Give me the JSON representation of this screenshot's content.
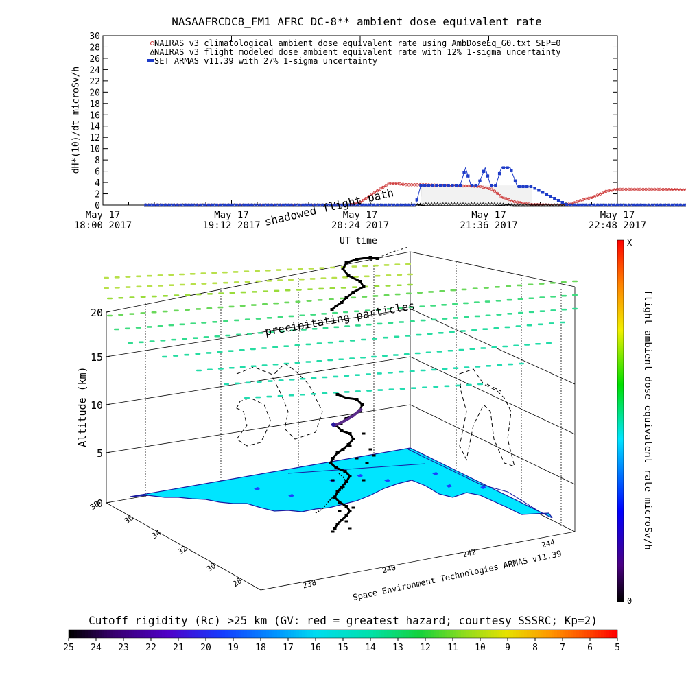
{
  "chart_data": [
    {
      "type": "line",
      "title": "NASAAFRCDC8_FM1 AFRC DC-8** ambient dose equivalent rate",
      "ylabel": "dH*(10)/dt microSv/h",
      "xlabel": "UT time",
      "ylim": [
        0,
        30
      ],
      "yticks": [
        "0",
        "2",
        "4",
        "6",
        "8",
        "10",
        "12",
        "14",
        "16",
        "18",
        "20",
        "22",
        "24",
        "26",
        "28",
        "30"
      ],
      "xticks": [
        {
          "line1": "May 17",
          "line2": "18:00 2017"
        },
        {
          "line1": "May 17",
          "line2": "19:12 2017"
        },
        {
          "line1": "May 17",
          "line2": "20:24 2017"
        },
        {
          "line1": "May 17",
          "line2": "21:36 2017"
        },
        {
          "line1": "May 17",
          "line2": "22:48 2017"
        }
      ],
      "xlim_minutes_after_1800": [
        0,
        288
      ],
      "legend_position": "top-left",
      "series": [
        {
          "name": "NAIRAS v3 climatological ambient dose equivalent rate using AmbDoseEq_G0.txt SEP=0",
          "color": "#cc3333",
          "marker": "circle",
          "x_minutes": [
            24,
            40,
            60,
            80,
            100,
            110,
            115,
            120,
            125,
            132,
            138,
            144,
            150,
            158,
            160,
            165,
            170,
            180,
            190,
            200,
            206,
            211,
            218,
            223,
            230,
            240,
            252,
            258,
            263,
            268,
            275,
            282,
            288,
            294,
            306,
            312,
            324,
            333,
            338,
            342,
            348,
            354
          ],
          "y": [
            0,
            0,
            0,
            0,
            0,
            0,
            0,
            0,
            0,
            0,
            0,
            0.5,
            1.8,
            3.4,
            3.8,
            3.8,
            3.6,
            3.6,
            3.5,
            3.4,
            3.4,
            3.3,
            2.8,
            1.5,
            0.6,
            0.1,
            0,
            0,
            0.3,
            0.9,
            1.5,
            2.5,
            2.8,
            2.8,
            2.8,
            2.8,
            2.7,
            2.7,
            0.3,
            0.1,
            0,
            0
          ]
        },
        {
          "name": "NAIRAS v3 flight modeled dose ambient equivalent rate with 12% 1-sigma uncertainty",
          "color": "#000000",
          "marker": "triangle",
          "x_minutes": [
            24,
            60,
            100,
            140,
            160,
            175,
            180,
            190,
            200,
            210,
            220,
            230,
            250,
            280,
            320,
            354
          ],
          "y": [
            0,
            0,
            0,
            0,
            0,
            0,
            0.2,
            0.2,
            0.2,
            0.2,
            0.2,
            0,
            0,
            0,
            0,
            0
          ]
        },
        {
          "name": "SET ARMAS v11.39 with 27% 1-sigma uncertainty",
          "color": "#1e3cc8",
          "marker": "square",
          "x_minutes": [
            24,
            60,
            100,
            140,
            175,
            178,
            182,
            190,
            196,
            200,
            203,
            206,
            210,
            214,
            217,
            220,
            223,
            225,
            228,
            232,
            236,
            240,
            260,
            300,
            354
          ],
          "y": [
            0,
            0,
            0,
            0,
            0,
            3.5,
            3.5,
            3.5,
            3.5,
            3.5,
            6.6,
            3.5,
            3.5,
            6.6,
            3.5,
            3.5,
            6.6,
            6.6,
            6.6,
            3.3,
            3.3,
            3.3,
            0,
            0,
            0
          ]
        }
      ]
    },
    {
      "type": "scatter",
      "subtype": "3d-trajectory",
      "zlabel": "Altitude (km)",
      "zlim": [
        0,
        20
      ],
      "zticks": [
        "0",
        "5",
        "10",
        "15",
        "20"
      ],
      "lat_ticks": [
        "28",
        "30",
        "32",
        "34",
        "36",
        "38"
      ],
      "lon_ticks": [
        "238",
        "240",
        "242",
        "244"
      ],
      "right_axis_label": "flight ambient dose equivalent rate microSv/h",
      "right_scale_top": "X",
      "right_scale_bottom": "0",
      "annotations": [
        "shadowed flight path",
        "precipitating particles"
      ],
      "credit": "Space Environment Technologies ARMAS v11.39",
      "surface_color": "#00e5ff"
    },
    {
      "type": "heatmap",
      "subtype": "colorbar",
      "title": "Cutoff rigidity (Rc) >25 km (GV: red = greatest hazard; courtesy SSSRC; Kp=2)",
      "ticks": [
        "25",
        "24",
        "23",
        "22",
        "21",
        "20",
        "19",
        "18",
        "17",
        "16",
        "15",
        "14",
        "13",
        "12",
        "11",
        "10",
        "9",
        "8",
        "7",
        "6",
        "5"
      ]
    }
  ]
}
